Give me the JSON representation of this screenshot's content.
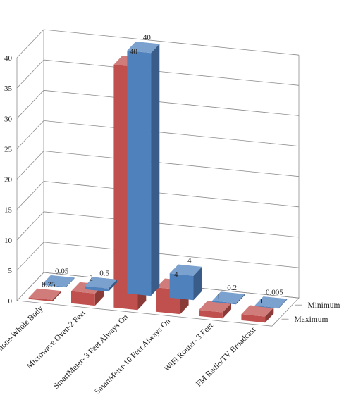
{
  "chart_data": {
    "type": "bar",
    "title": "",
    "xlabel": "",
    "ylabel": "",
    "ylim": [
      0,
      40
    ],
    "yticks": [
      "0",
      "5",
      "10",
      "15",
      "20",
      "25",
      "30",
      "35",
      "40"
    ],
    "grid": true,
    "categories": [
      "Cell Phone-Whole Body",
      "Microwave Oven-2 Feet",
      "SmartMeter- 3 Feet Always On",
      "SmartMeter-10 Feet Always On",
      "WiFi Router- 3 Feet",
      "FM Radio/TV Broadcast"
    ],
    "series": [
      {
        "name": "Minimum",
        "color": "#4f81bd",
        "values": [
          0.05,
          0.5,
          40,
          4,
          0.2,
          0.005
        ],
        "labels": [
          "0.05",
          "0.5",
          "40",
          "4",
          "0.2",
          "0.005"
        ]
      },
      {
        "name": "Maximum",
        "color": "#c0504d",
        "values": [
          0.25,
          2,
          40,
          4,
          1,
          1
        ],
        "labels": [
          "0.25",
          "2",
          "40",
          "4",
          "1",
          "1"
        ]
      }
    ]
  }
}
